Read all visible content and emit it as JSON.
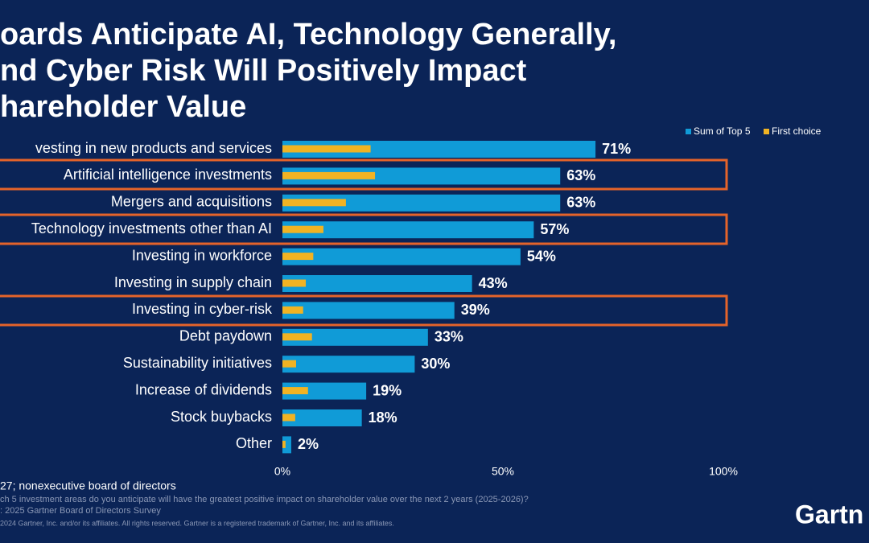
{
  "chart_data": {
    "type": "bar",
    "orientation": "horizontal",
    "title": [
      "oards Anticipate AI, Technology Generally,",
      "nd Cyber Risk Will Positively Impact",
      "hareholder Value"
    ],
    "categories": [
      "vesting in new products and services",
      "Artificial intelligence investments",
      "Mergers and acquisitions",
      "Technology investments other than AI",
      "Investing in workforce",
      "Investing in supply chain",
      "Investing in cyber-risk",
      "Debt paydown",
      "Sustainability initiatives",
      "Increase of dividends",
      "Stock buybacks",
      "Other"
    ],
    "series": [
      {
        "name": "Sum of Top 5",
        "color": "#109bd7",
        "values": [
          71,
          63,
          63,
          57,
          54,
          43,
          39,
          33,
          30,
          19,
          18,
          2
        ],
        "value_labels": [
          "71%",
          "63%",
          "63%",
          "57%",
          "54%",
          "43%",
          "39%",
          "33%",
          "30%",
          "19%",
          "18%",
          "2%"
        ]
      },
      {
        "name": "First choice",
        "color": "#f0b323",
        "values": [
          20,
          21,
          14.4,
          9.3,
          7,
          5.3,
          4.7,
          6.7,
          3.1,
          5.8,
          2.9,
          0.7
        ]
      }
    ],
    "xlim": [
      0,
      100
    ],
    "xticks": [
      {
        "value": 0,
        "label": "0%"
      },
      {
        "value": 50,
        "label": "50%"
      },
      {
        "value": 100,
        "label": "100%"
      }
    ],
    "legend": "top-right",
    "notes": [
      "27; nonexecutive board  of directors",
      "ch 5 investment areas do you anticipate will have the greatest positive impact on shareholder value over the next 2 years       (2025-2026)?",
      ": 2025 Gartner Board of Directors Survey",
      "2024 Gartner, Inc. and/or its affiliates. All rights reserved. Gartner is a registered trademark of Gartner, Inc. and its affiliates."
    ],
    "logo": "Gartn"
  }
}
